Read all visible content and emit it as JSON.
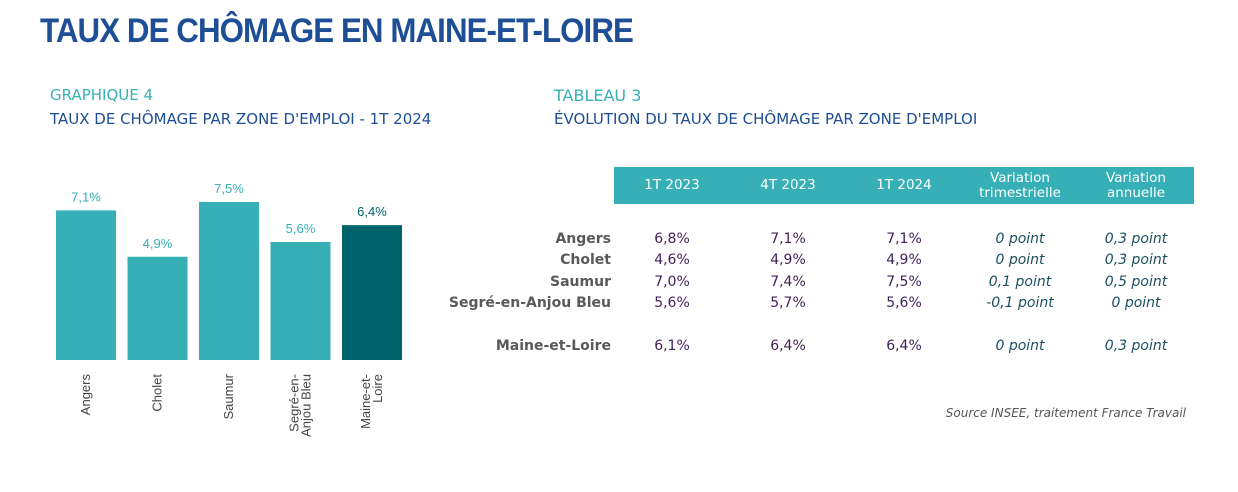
{
  "page": {
    "title": "TAUX DE CHÔMAGE EN MAINE-ET-LOIRE"
  },
  "graphique": {
    "label": "GRAPHIQUE 4",
    "subtitle": "TAUX DE CHÔMAGE PAR ZONE D'EMPLOI - 1T 2024"
  },
  "tableau": {
    "label": "TABLEAU 3",
    "subtitle": "ÉVOLUTION DU TAUX DE CHÔMAGE PAR ZONE D'EMPLOI",
    "headers": [
      "1T 2023",
      "4T 2023",
      "1T 2024",
      "Variation\ntrimestrielle",
      "Variation\nannuelle"
    ],
    "rows": [
      {
        "zone": "Angers",
        "cells": [
          "6,8%",
          "7,1%",
          "7,1%",
          "0 point",
          "0,3 point"
        ]
      },
      {
        "zone": "Cholet",
        "cells": [
          "4,6%",
          "4,9%",
          "4,9%",
          "0 point",
          "0,3 point"
        ]
      },
      {
        "zone": "Saumur",
        "cells": [
          "7,0%",
          "7,4%",
          "7,5%",
          "0,1 point",
          "0,5 point"
        ]
      },
      {
        "zone": "Segré-en-Anjou Bleu",
        "cells": [
          "5,6%",
          "5,7%",
          "5,6%",
          "-0,1 point",
          "0 point"
        ]
      },
      {
        "zone": "Maine-et-Loire",
        "cells": [
          "6,1%",
          "6,4%",
          "6,4%",
          "0 point",
          "0,3 point"
        ]
      }
    ],
    "source": "Source INSEE, traitement France Travail"
  },
  "colors": {
    "title": "#1d4e96",
    "teal": "#36b0b6",
    "dark_teal": "#00626b",
    "header_text": "#ffffff"
  },
  "chart_data": {
    "type": "bar",
    "categories": [
      "Angers",
      "Cholet",
      "Saumur",
      "Segré-en-Anjou Bleu",
      "Maine-et-Loire"
    ],
    "category_label_lines": [
      [
        "Angers"
      ],
      [
        "Cholet"
      ],
      [
        "Saumur"
      ],
      [
        "Segré-en-",
        "Anjou Bleu"
      ],
      [
        "Maine-et-",
        "Loire"
      ]
    ],
    "values": [
      7.1,
      4.9,
      7.5,
      5.6,
      6.4
    ],
    "data_labels": [
      "7,1%",
      "4,9%",
      "7,5%",
      "5,6%",
      "6,4%"
    ],
    "bar_colors": [
      "#36b0b6",
      "#36b0b6",
      "#36b0b6",
      "#36b0b6",
      "#00626b"
    ],
    "label_colors": [
      "#36b0b6",
      "#36b0b6",
      "#36b0b6",
      "#36b0b6",
      "#00626b"
    ],
    "title": "",
    "xlabel": "",
    "ylabel": "",
    "ylim": [
      0,
      8.4
    ],
    "grid": false
  }
}
